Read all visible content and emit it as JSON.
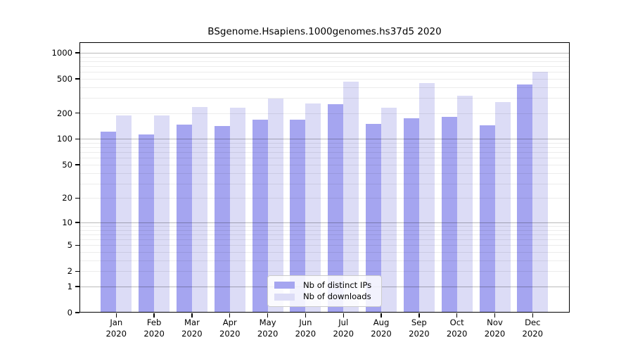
{
  "title": "BSgenome.Hsapiens.1000genomes.hs37d5 2020",
  "chart_data": {
    "type": "bar",
    "title": "BSgenome.Hsapiens.1000genomes.hs37d5 2020",
    "categories": [
      "Jan",
      "Feb",
      "Mar",
      "Apr",
      "May",
      "Jun",
      "Jul",
      "Aug",
      "Sep",
      "Oct",
      "Nov",
      "Dec"
    ],
    "category_year": "2020",
    "series": [
      {
        "name": "Nb of distinct IPs",
        "color": "#a5a5f0",
        "values": [
          121,
          114,
          146,
          142,
          169,
          168,
          253,
          149,
          176,
          180,
          144,
          428
        ]
      },
      {
        "name": "Nb of downloads",
        "color": "#dcdcf6",
        "values": [
          188,
          187,
          236,
          233,
          295,
          259,
          464,
          232,
          448,
          320,
          269,
          605
        ]
      }
    ],
    "xlabel": "",
    "ylabel": "",
    "yscale": "log1p",
    "yticks": [
      0,
      1,
      2,
      5,
      10,
      20,
      50,
      100,
      200,
      500,
      1000
    ],
    "ylim": [
      0,
      1320
    ],
    "grid": "horizontal, minor and major",
    "legend_position": "inside-bottom-center",
    "colors": {
      "major_gridline": "#bababa",
      "minor_gridline": "#ececec",
      "axis": "#000000",
      "background": "#ffffff"
    }
  }
}
